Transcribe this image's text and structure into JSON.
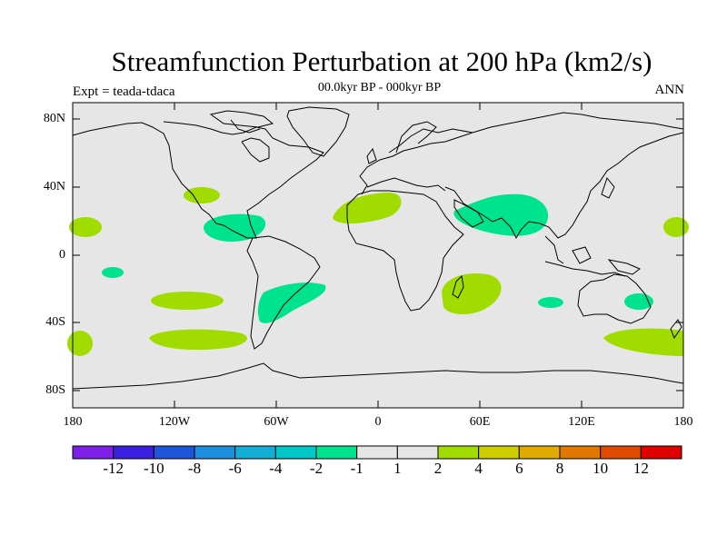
{
  "map": {
    "title": "Streamfunction Perturbation at 200 hPa (km2/s)",
    "subtitle": "00.0kyr BP - 000kyr BP",
    "left_label": "Expt = teada-tdaca",
    "right_label": "ANN",
    "lat_ticks": [
      "80N",
      "40N",
      "0",
      "40S",
      "80S"
    ],
    "lon_ticks": [
      "180",
      "120W",
      "60W",
      "0",
      "60E",
      "120E",
      "180"
    ],
    "colors": {
      "background": "#e6e6e6",
      "positive_fill": "#a0dc00",
      "negative_fill": "#00e38e",
      "coastline": "#000000"
    }
  },
  "colorbar": {
    "labels": [
      "-12",
      "-10",
      "-8",
      "-6",
      "-4",
      "-2",
      "-1",
      "1",
      "2",
      "4",
      "6",
      "8",
      "10",
      "12"
    ],
    "colors": [
      "#7d1fe6",
      "#3a1fe0",
      "#1f55d8",
      "#1e8ede",
      "#12aed6",
      "#00c8c8",
      "#00e38e",
      "#e6e6e6",
      "#a0dc00",
      "#cdcd00",
      "#e0aa00",
      "#e07800",
      "#e04a00",
      "#e00000"
    ]
  }
}
